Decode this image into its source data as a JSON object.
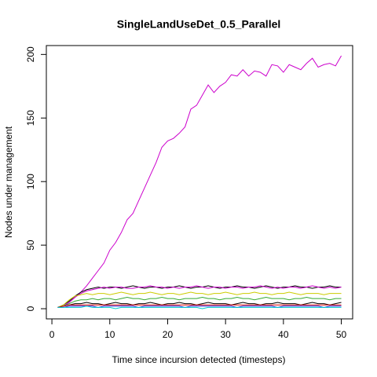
{
  "chart_data": {
    "type": "line",
    "title": "SingleLandUseDet_0.5_Parallel",
    "x_label": "Time since incursion detected (timesteps)",
    "y_label": "Nodes under management",
    "x": [
      1,
      2,
      3,
      4,
      5,
      6,
      7,
      8,
      9,
      10,
      11,
      12,
      13,
      14,
      15,
      16,
      17,
      18,
      19,
      20,
      21,
      22,
      23,
      24,
      25,
      26,
      27,
      28,
      29,
      30,
      31,
      32,
      33,
      34,
      35,
      36,
      37,
      38,
      39,
      40,
      41,
      42,
      43,
      44,
      45,
      46,
      47,
      48,
      49,
      50
    ],
    "xlim": [
      -0.96,
      51.96
    ],
    "xticks": [
      0,
      10,
      20,
      30,
      40,
      50
    ],
    "ylim": [
      -8,
      207
    ],
    "yticks": [
      0,
      50,
      100,
      150,
      200
    ],
    "series": [
      {
        "color": "#cc00cc",
        "values": [
          1,
          2,
          5,
          9,
          13,
          18,
          24,
          30,
          36,
          46,
          52,
          60,
          70,
          75,
          85,
          95,
          105,
          115,
          127,
          132,
          134,
          138,
          143,
          157,
          160,
          168,
          176,
          170,
          175,
          178,
          184,
          183,
          188,
          183,
          187,
          186,
          183,
          192,
          191,
          186,
          192,
          190,
          188,
          193,
          197,
          190,
          192,
          193,
          191,
          199
        ]
      },
      {
        "color": "#000000",
        "values": [
          1,
          3,
          6,
          10,
          13,
          15,
          16,
          17,
          16,
          17,
          17,
          16,
          17,
          18,
          17,
          16,
          17,
          17,
          16,
          17,
          17,
          18,
          17,
          16,
          17,
          17,
          18,
          17,
          16,
          17,
          17,
          18,
          17,
          17,
          16,
          17,
          18,
          17,
          16,
          17,
          17,
          18,
          17,
          17,
          16,
          17,
          17,
          18,
          17,
          17
        ]
      },
      {
        "color": "#cc00cc",
        "values": [
          1,
          2,
          5,
          9,
          12,
          14,
          15,
          16,
          17,
          16,
          17,
          17,
          16,
          16,
          17,
          17,
          18,
          17,
          17,
          16,
          17,
          16,
          17,
          17,
          18,
          17,
          16,
          17,
          17,
          16,
          17,
          17,
          16,
          17,
          17,
          18,
          17,
          16,
          17,
          16,
          17,
          17,
          16,
          17,
          18,
          17,
          16,
          17,
          16,
          17
        ]
      },
      {
        "color": "#cccc00",
        "values": [
          1,
          3,
          7,
          10,
          11,
          12,
          11,
          12,
          12,
          11,
          12,
          13,
          12,
          11,
          12,
          12,
          13,
          12,
          11,
          12,
          12,
          11,
          12,
          13,
          12,
          12,
          11,
          12,
          12,
          13,
          12,
          11,
          12,
          12,
          13,
          12,
          12,
          11,
          12,
          12,
          13,
          12,
          11,
          12,
          12,
          12,
          11,
          12,
          12,
          12
        ]
      },
      {
        "color": "#33aa33",
        "values": [
          1,
          2,
          4,
          6,
          7,
          7,
          8,
          7,
          8,
          8,
          7,
          8,
          9,
          8,
          8,
          7,
          8,
          8,
          9,
          8,
          8,
          7,
          8,
          8,
          8,
          9,
          8,
          8,
          7,
          8,
          8,
          9,
          8,
          8,
          7,
          8,
          9,
          8,
          8,
          8,
          7,
          8,
          8,
          9,
          8,
          8,
          8,
          7,
          8,
          8
        ]
      },
      {
        "color": "#000000",
        "values": [
          1,
          2,
          3,
          4,
          4,
          5,
          4,
          4,
          3,
          4,
          5,
          4,
          4,
          3,
          4,
          4,
          5,
          4,
          3,
          4,
          4,
          5,
          4,
          4,
          3,
          4,
          5,
          4,
          4,
          4,
          3,
          4,
          5,
          4,
          4,
          3,
          4,
          4,
          5,
          4,
          4,
          4,
          3,
          4,
          5,
          4,
          4,
          3,
          4,
          5
        ]
      },
      {
        "color": "#dd0000",
        "values": [
          1,
          2,
          3,
          3,
          3,
          3,
          3,
          3,
          3,
          3,
          3,
          3,
          3,
          3,
          3,
          3,
          3,
          3,
          3,
          3,
          3,
          3,
          3,
          3,
          3,
          3,
          3,
          3,
          3,
          3,
          3,
          3,
          3,
          3,
          3,
          3,
          3,
          3,
          3,
          3,
          3,
          3,
          3,
          3,
          3,
          3,
          3,
          3,
          3,
          3
        ]
      },
      {
        "color": "#2222dd",
        "values": [
          1,
          1,
          2,
          2,
          2,
          2,
          2,
          1,
          2,
          2,
          2,
          2,
          2,
          2,
          1,
          2,
          2,
          2,
          2,
          2,
          2,
          2,
          1,
          2,
          2,
          2,
          2,
          2,
          2,
          2,
          2,
          1,
          2,
          2,
          2,
          2,
          2,
          2,
          1,
          2,
          2,
          2,
          2,
          2,
          2,
          2,
          1,
          2,
          2,
          2
        ]
      },
      {
        "color": "#00cccc",
        "values": [
          1,
          1,
          1,
          1,
          1,
          2,
          1,
          1,
          1,
          1,
          0,
          1,
          1,
          1,
          1,
          1,
          1,
          1,
          1,
          1,
          1,
          1,
          1,
          1,
          1,
          0,
          1,
          1,
          1,
          1,
          1,
          1,
          1,
          1,
          1,
          1,
          1,
          1,
          1,
          1,
          1,
          1,
          1,
          1,
          1,
          1,
          1,
          1,
          1,
          1
        ]
      }
    ]
  }
}
